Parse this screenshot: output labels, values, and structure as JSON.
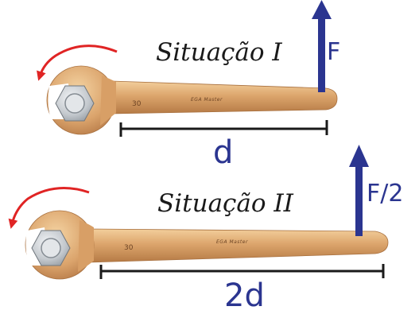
{
  "situation_1": {
    "title": "Situação I",
    "force_label": "F",
    "distance_label": "d",
    "wrench_size_mark": "30",
    "brand_mark": "EGA Master"
  },
  "situation_2": {
    "title": "Situação II",
    "force_label": "F/2",
    "distance_label": "2d",
    "wrench_size_mark": "30",
    "brand_mark": "EGA Master"
  },
  "colors": {
    "force_arrow": "#2b3590",
    "distance_line": "#1a1a1a",
    "rotation_arrow": "#e02424",
    "wrench_bronze": "#dba46c",
    "nut_silver": "#c7ccd1"
  }
}
